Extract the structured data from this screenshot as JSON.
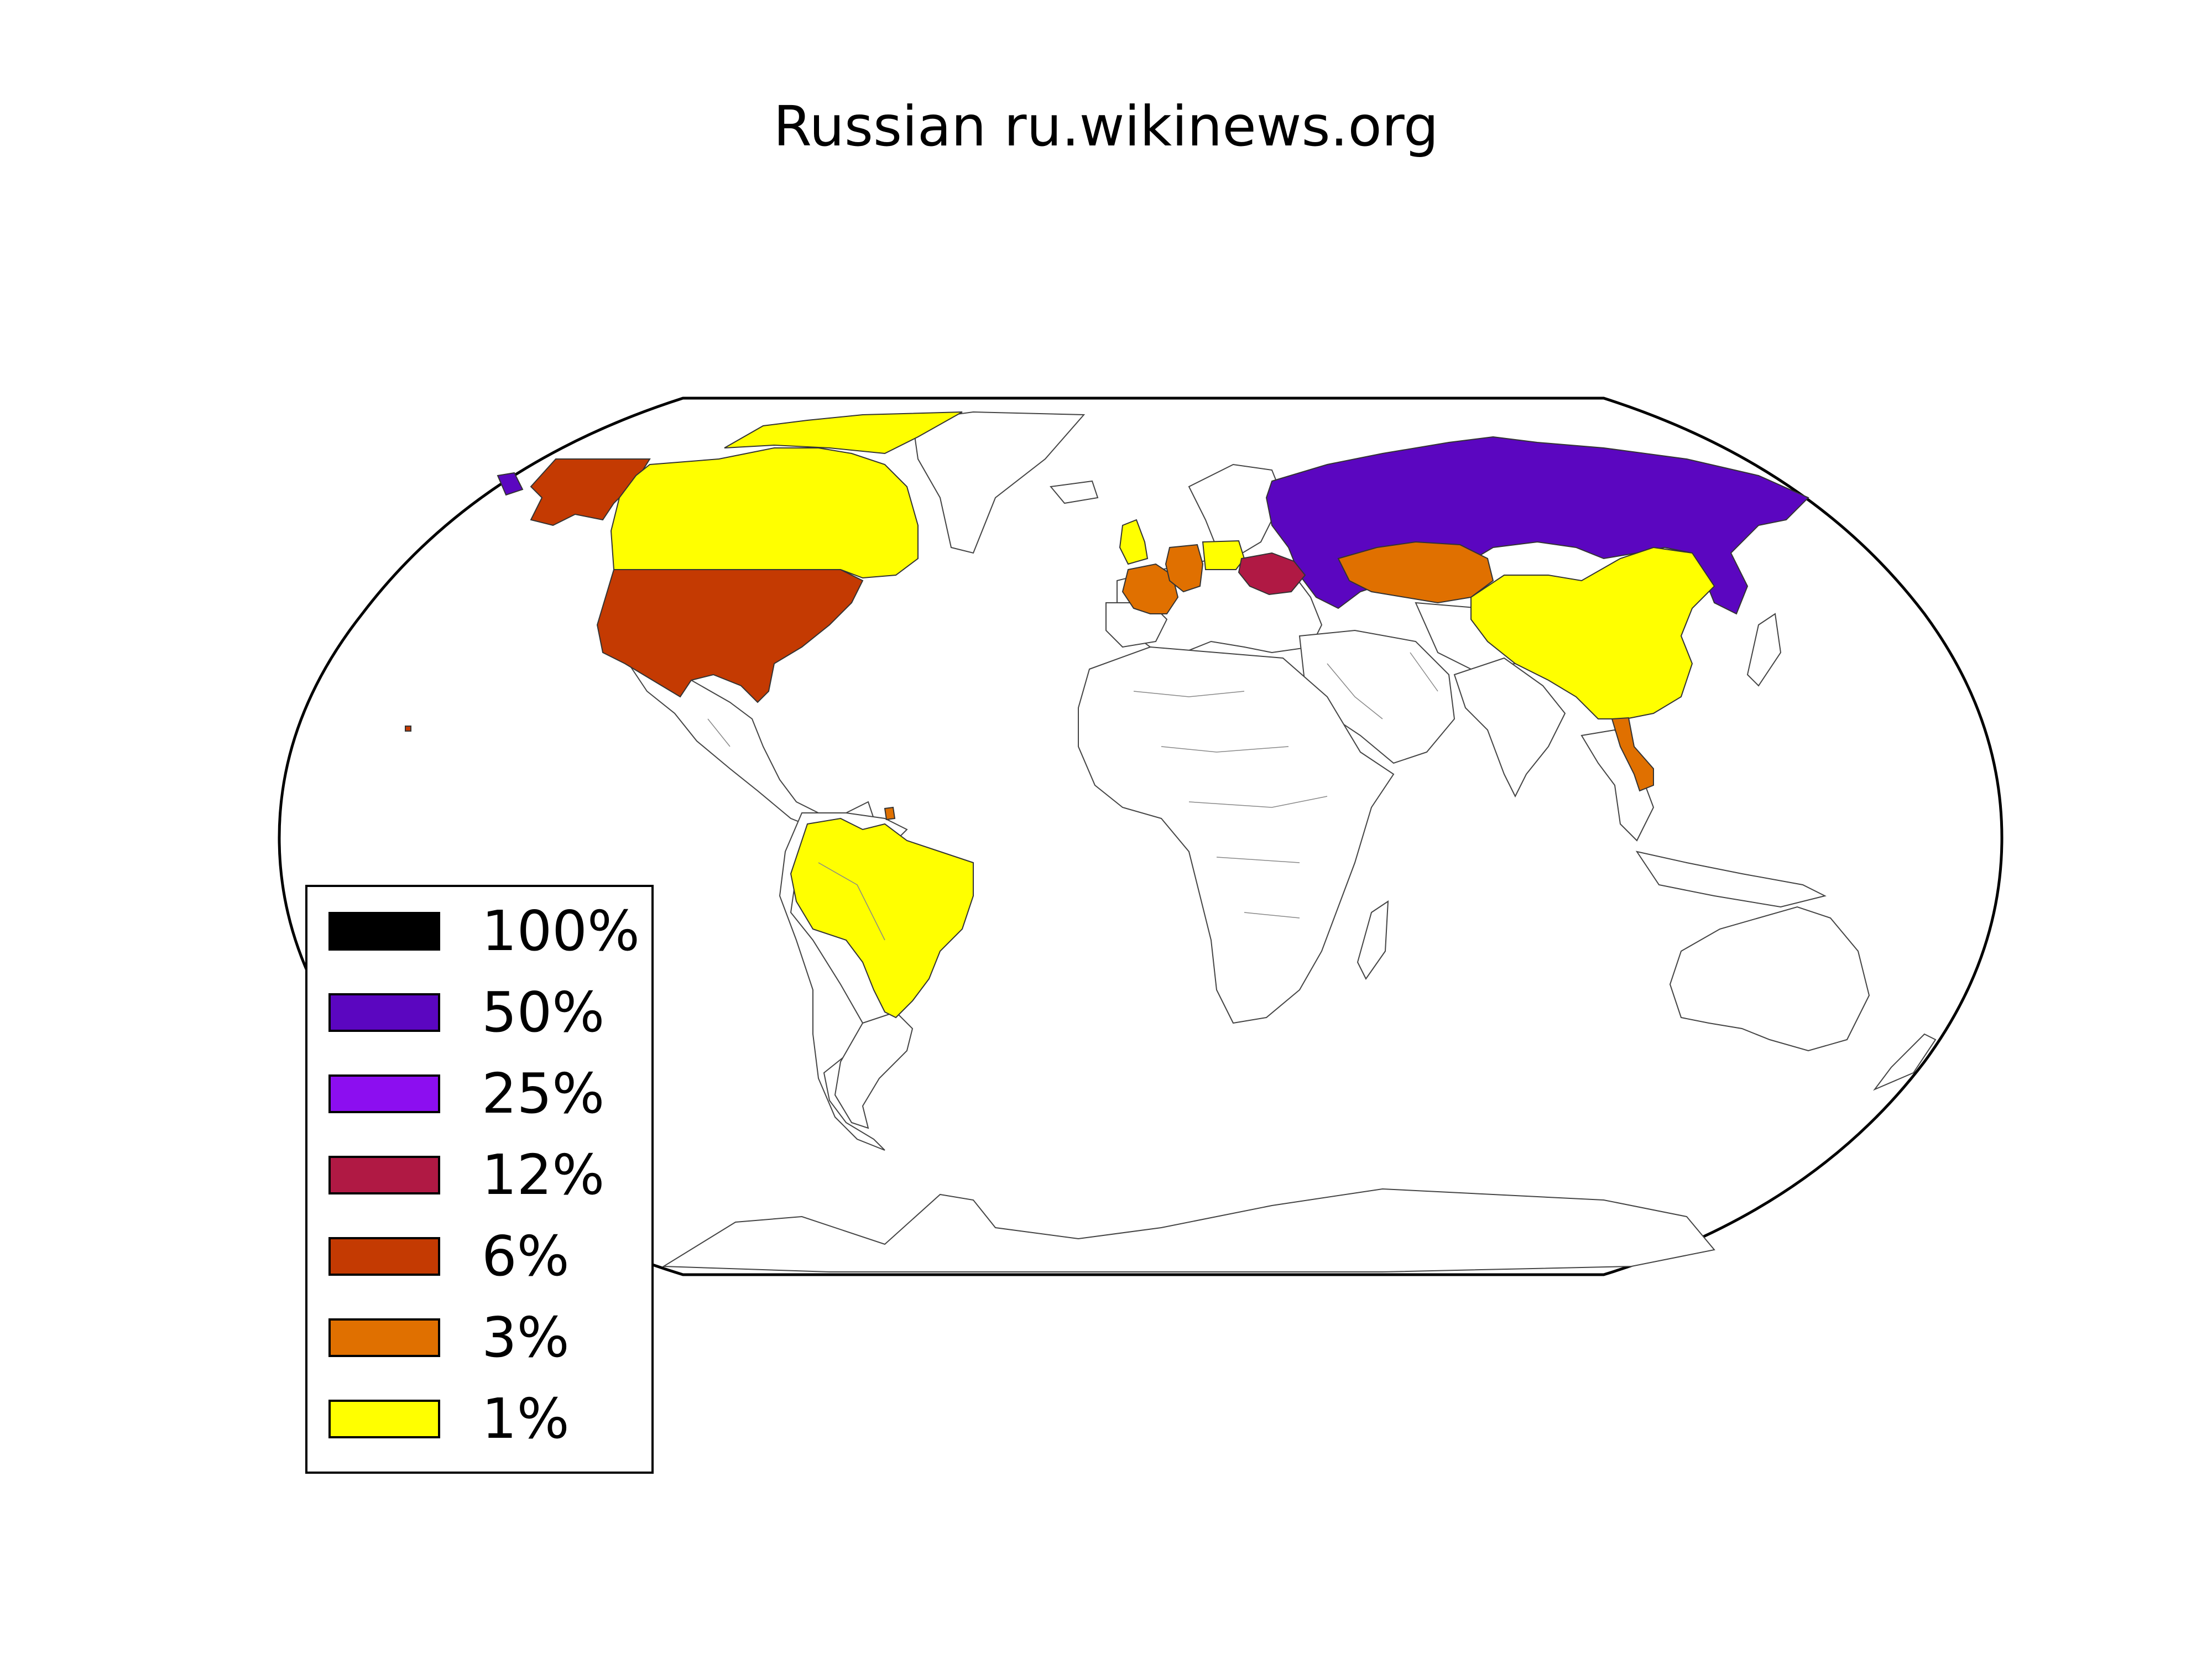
{
  "title": "Russian ru.wikinews.org",
  "legend": [
    {
      "label": "100%",
      "color": "#000000"
    },
    {
      "label": "50%",
      "color": "#5b06c0"
    },
    {
      "label": "25%",
      "color": "#8c0ef0"
    },
    {
      "label": "12%",
      "color": "#b01944"
    },
    {
      "label": "6%",
      "color": "#c43a02"
    },
    {
      "label": "3%",
      "color": "#e07000"
    },
    {
      "label": "1%",
      "color": "#ffff00"
    }
  ],
  "countries": [
    {
      "name": "Russia",
      "share": "50%",
      "color": "#5b06c0"
    },
    {
      "name": "Ukraine",
      "share": "12%",
      "color": "#b01944"
    },
    {
      "name": "United States",
      "share": "6%",
      "color": "#c43a02"
    },
    {
      "name": "Germany",
      "share": "3%",
      "color": "#e07000"
    },
    {
      "name": "France",
      "share": "3%",
      "color": "#e07000"
    },
    {
      "name": "Kazakhstan",
      "share": "3%",
      "color": "#e07000"
    },
    {
      "name": "Vietnam",
      "share": "3%",
      "color": "#e07000"
    },
    {
      "name": "Canada",
      "share": "1%",
      "color": "#ffff00"
    },
    {
      "name": "China",
      "share": "1%",
      "color": "#ffff00"
    },
    {
      "name": "Brazil",
      "share": "1%",
      "color": "#ffff00"
    },
    {
      "name": "United Kingdom",
      "share": "1%",
      "color": "#ffff00"
    },
    {
      "name": "Poland",
      "share": "1%",
      "color": "#ffff00"
    }
  ]
}
